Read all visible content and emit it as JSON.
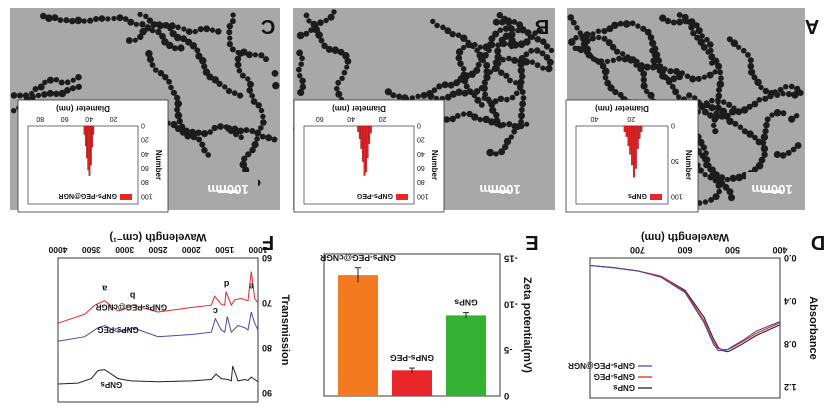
{
  "figure": {
    "panel_labels": {
      "A": "A",
      "B": "B",
      "C": "C",
      "D": "D",
      "E": "E",
      "F": "F"
    },
    "scale_bar_label": "100nm",
    "colors": {
      "bar_red": "#e8262a",
      "bar_orange": "#f47a20",
      "bar_green": "#33b233",
      "line_black": "#222222",
      "line_red": "#e8262a",
      "line_blue": "#4a4aa8",
      "tem_bg": "#a8a8a8",
      "particle": "#1c1c1c"
    }
  },
  "chart_data": [
    {
      "id": "A",
      "type": "bar",
      "title": "",
      "legend": [
        "GNPs"
      ],
      "xlabel": "Diameter (nm)",
      "ylabel": "Number",
      "xticks": [
        "20",
        "40"
      ],
      "yticks": [
        "0",
        "50",
        "100"
      ],
      "bins": [
        14,
        15,
        16,
        17,
        18,
        19,
        20,
        21,
        22,
        23
      ],
      "values": [
        8,
        18,
        32,
        60,
        72,
        55,
        40,
        28,
        15,
        8
      ]
    },
    {
      "id": "B",
      "type": "bar",
      "title": "",
      "legend": [
        "GNPs-PEG"
      ],
      "xlabel": "Diameter (nm)",
      "ylabel": "Number",
      "xticks": [
        "20",
        "40",
        "60"
      ],
      "yticks": [
        "0",
        "20",
        "40",
        "60",
        "80",
        "100"
      ],
      "bins": [
        27,
        28,
        29,
        30,
        31,
        32,
        33,
        34,
        35
      ],
      "values": [
        10,
        25,
        45,
        65,
        70,
        50,
        32,
        18,
        8
      ]
    },
    {
      "id": "C",
      "type": "bar",
      "title": "",
      "legend": [
        "GNPs-PEG@NGR"
      ],
      "xlabel": "Diameter (nm)",
      "ylabel": "Number",
      "xticks": [
        "20",
        "40",
        "60",
        "80"
      ],
      "yticks": [
        "0",
        "20",
        "40",
        "60",
        "80",
        "100"
      ],
      "bins": [
        36,
        37,
        38,
        39,
        40,
        41,
        42,
        43
      ],
      "values": [
        12,
        30,
        55,
        70,
        62,
        45,
        28,
        12
      ]
    },
    {
      "id": "D",
      "type": "line",
      "title": "",
      "xlabel": "Wavelength (nm)",
      "ylabel": "Absorbance",
      "xticks": [
        "400",
        "500",
        "600",
        "700"
      ],
      "yticks": [
        "0.0",
        "0.4",
        "0.8",
        "1.2"
      ],
      "xlim": [
        400,
        800
      ],
      "ylim": [
        0,
        1.3
      ],
      "series": [
        {
          "name": "GNPs",
          "x": [
            400,
            450,
            480,
            500,
            510,
            520,
            530,
            540,
            560,
            600,
            650,
            700,
            750,
            800
          ],
          "y": [
            0.62,
            0.72,
            0.8,
            0.85,
            0.87,
            0.86,
            0.83,
            0.75,
            0.55,
            0.3,
            0.17,
            0.12,
            0.09,
            0.07
          ]
        },
        {
          "name": "GNPs-PEG",
          "x": [
            400,
            450,
            480,
            500,
            510,
            520,
            530,
            540,
            560,
            600,
            650,
            700,
            750,
            800
          ],
          "y": [
            0.6,
            0.7,
            0.78,
            0.83,
            0.85,
            0.85,
            0.84,
            0.78,
            0.58,
            0.31,
            0.17,
            0.12,
            0.09,
            0.07
          ]
        },
        {
          "name": "GNPs-PEG@NGR",
          "x": [
            400,
            450,
            480,
            500,
            510,
            520,
            530,
            540,
            560,
            600,
            650,
            700,
            750,
            800
          ],
          "y": [
            0.59,
            0.68,
            0.77,
            0.82,
            0.85,
            0.86,
            0.86,
            0.8,
            0.6,
            0.32,
            0.18,
            0.12,
            0.09,
            0.07
          ]
        }
      ]
    },
    {
      "id": "E",
      "type": "bar",
      "title": "",
      "ylabel": "Zeta potential(mV)",
      "yticks": [
        "0",
        "-5",
        "-10",
        "-15"
      ],
      "ylim": [
        -15.5,
        0
      ],
      "categories": [
        "GNPs",
        "GNPs-PEG",
        "GNPs-PEG@cNGR"
      ],
      "values": [
        -8.8,
        -2.8,
        -13.2
      ],
      "errors": [
        0.3,
        0.25,
        0.8
      ]
    },
    {
      "id": "F",
      "type": "line",
      "title": "",
      "xlabel": "Wavelength (cm⁻¹)",
      "ylabel": "Transmission",
      "xticks": [
        "1000",
        "1500",
        "2000",
        "2500",
        "3000",
        "3500",
        "4000"
      ],
      "yticks": [
        "60",
        "70",
        "80",
        "90"
      ],
      "xlim": [
        1000,
        4000
      ],
      "ylim": [
        60,
        92
      ],
      "series": [
        {
          "name": "GNPs",
          "label": "GNPs",
          "x": [
            1000,
            1050,
            1100,
            1150,
            1200,
            1300,
            1380,
            1400,
            1450,
            1550,
            1630,
            1700,
            2000,
            2500,
            2900,
            3100,
            3300,
            3400,
            3500,
            3700,
            4000
          ],
          "y": [
            87.5,
            87.0,
            86.5,
            87.2,
            87.0,
            87.3,
            84.0,
            87.3,
            87.0,
            86.8,
            85.8,
            87.0,
            87.3,
            87.5,
            87.3,
            86.8,
            84.8,
            85.0,
            86.8,
            87.8,
            88.0
          ]
        },
        {
          "name": "GNPs-PEG",
          "label": "GNPs-PEG",
          "x": [
            1000,
            1050,
            1100,
            1150,
            1200,
            1300,
            1400,
            1460,
            1500,
            1550,
            1640,
            1700,
            2000,
            2500,
            2880,
            2950,
            3100,
            3300,
            3400,
            3600,
            4000
          ],
          "y": [
            76.0,
            74.5,
            72.0,
            76.0,
            75.5,
            75.0,
            76.5,
            73.0,
            76.5,
            76.0,
            73.5,
            76.5,
            77.0,
            77.5,
            75.5,
            76.0,
            76.5,
            75.0,
            75.5,
            77.5,
            78.5
          ]
        },
        {
          "name": "GNPs-PEG@cNGR",
          "label": "GNPs-PEG@cNGR",
          "x": [
            1000,
            1050,
            1100,
            1150,
            1250,
            1350,
            1400,
            1480,
            1500,
            1550,
            1650,
            1700,
            2000,
            2500,
            2880,
            2950,
            3100,
            3300,
            3450,
            3600,
            4000
          ],
          "y": [
            70.0,
            69.0,
            63.0,
            69.5,
            69.0,
            69.3,
            70.5,
            67.5,
            70.5,
            70.3,
            68.5,
            70.5,
            71.0,
            72.0,
            70.5,
            71.0,
            71.8,
            69.5,
            70.5,
            72.5,
            74.5
          ]
        }
      ],
      "annotations": [
        "a",
        "b",
        "c",
        "d",
        "e"
      ]
    }
  ]
}
